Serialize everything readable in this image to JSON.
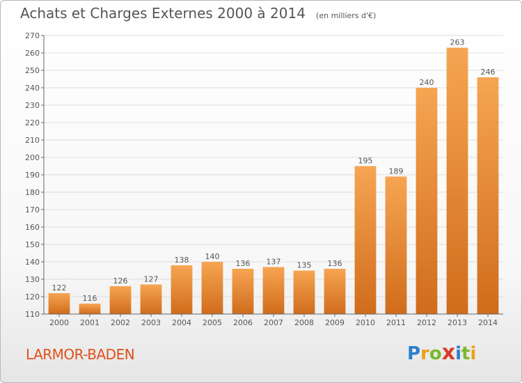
{
  "header": {
    "title": "Achats et Charges Externes 2000 à 2014",
    "unit": "(en milliers d'€)"
  },
  "footer": {
    "commune": "LARMOR-BADEN",
    "logo": [
      "P",
      "r",
      "o",
      "x",
      "i",
      "t",
      "i"
    ]
  },
  "colors": {
    "bar_top": "#f6a552",
    "bar_bottom": "#d06c1c",
    "commune_text": "#e0501a",
    "axis": "#666666",
    "grid": "#dddddd"
  },
  "chart_data": {
    "type": "bar",
    "title": "Achats et Charges Externes 2000 à 2014",
    "subtitle": "(en milliers d'€)",
    "categories": [
      "2000",
      "2001",
      "2002",
      "2003",
      "2004",
      "2005",
      "2006",
      "2007",
      "2008",
      "2009",
      "2010",
      "2011",
      "2012",
      "2013",
      "2014"
    ],
    "values": [
      122,
      116,
      126,
      127,
      138,
      140,
      136,
      137,
      135,
      136,
      195,
      189,
      240,
      263,
      246
    ],
    "data_labels": [
      "122",
      "116",
      "126",
      "127",
      "138",
      "140",
      "136",
      "137",
      "135",
      "136",
      "195",
      "189",
      "240",
      "263",
      "246"
    ],
    "ylim": [
      110,
      270
    ],
    "yticks": [
      110,
      120,
      130,
      140,
      150,
      160,
      170,
      180,
      190,
      200,
      210,
      220,
      230,
      240,
      250,
      260,
      270
    ],
    "xlabel": "",
    "ylabel": "",
    "grid": true,
    "legend": false
  }
}
